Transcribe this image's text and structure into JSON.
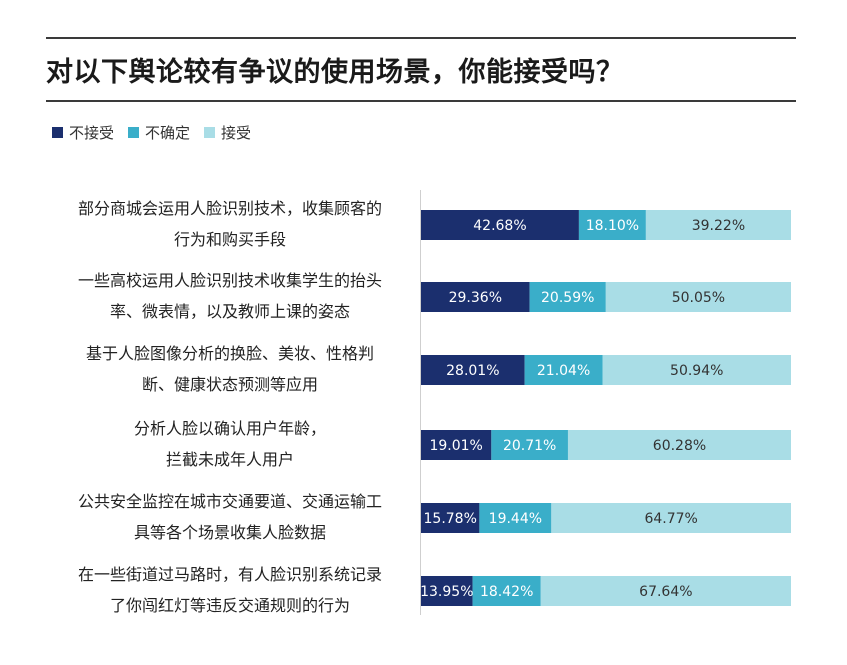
{
  "chart_data": {
    "type": "bar",
    "orientation": "horizontal",
    "stacked": true,
    "title": "对以下舆论较有争议的使用场景，你能接受吗？",
    "categories": [
      [
        "部分商城会运用人脸识别技术，收集顾客的",
        "行为和购买手段"
      ],
      [
        "一些高校运用人脸识别技术收集学生的抬头",
        "率、微表情，以及教师上课的姿态"
      ],
      [
        "基于人脸图像分析的换脸、美妆、性格判",
        "断、健康状态预测等应用"
      ],
      [
        "分析人脸以确认用户年龄，",
        "拦截未成年人用户"
      ],
      [
        "公共安全监控在城市交通要道、交通运输工",
        "具等各个场景收集人脸数据"
      ],
      [
        "在一些街道过马路时，有人脸识别系统记录",
        "了你闯红灯等违反交通规则的行为"
      ]
    ],
    "series": [
      {
        "name": "不接受",
        "color": "#1b2f6e",
        "values": [
          42.68,
          29.36,
          28.01,
          19.01,
          15.78,
          13.95
        ],
        "labels": [
          "42.68%",
          "29.36%",
          "28.01%",
          "19.01%",
          "15.78%",
          "13.95%"
        ]
      },
      {
        "name": "不确定",
        "color": "#3aaec9",
        "values": [
          18.1,
          20.59,
          21.04,
          20.71,
          19.44,
          18.42
        ],
        "labels": [
          "18.10%",
          "20.59%",
          "21.04%",
          "20.71%",
          "19.44%",
          "18.42%"
        ]
      },
      {
        "name": "接受",
        "color": "#a9dde6",
        "values": [
          39.22,
          50.05,
          50.94,
          60.28,
          64.77,
          67.64
        ],
        "labels": [
          "39.22%",
          "50.05%",
          "50.94%",
          "60.28%",
          "64.77%",
          "67.64%"
        ]
      }
    ],
    "xlim": [
      0,
      100
    ],
    "legend_position": "top-left",
    "grid": false
  }
}
